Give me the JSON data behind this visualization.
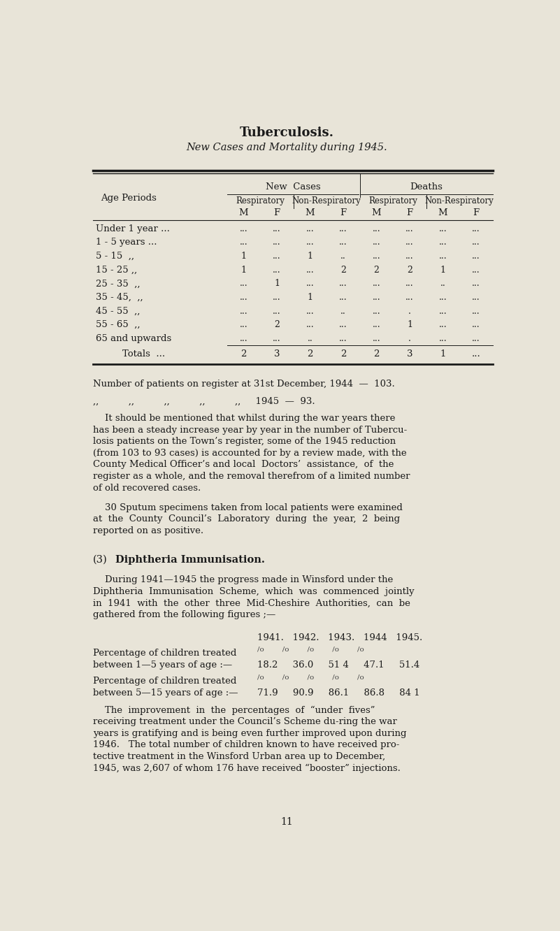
{
  "bg_color": "#e8e4d8",
  "text_color": "#1a1a1a",
  "page_width": 8.01,
  "page_height": 13.32,
  "title": "Tuberculosis.",
  "subtitle": "New Cases and Mortality during 1945.",
  "table_rows": [
    [
      "Under 1 year ...",
      "...",
      "...",
      "...",
      "...",
      "...",
      "...",
      "...",
      "..."
    ],
    [
      "1 - 5 years ...",
      "...",
      "...",
      "...",
      "...",
      "...",
      "...",
      "...",
      "..."
    ],
    [
      "5 - 15  ,,",
      "1",
      "...",
      "1",
      "..",
      "...",
      "...",
      "...",
      "..."
    ],
    [
      "15 - 25 ,,",
      "1",
      "...",
      "...",
      "2",
      "2",
      "2",
      "1",
      "..."
    ],
    [
      "25 - 35  ,,",
      "...",
      "1",
      "...",
      "...",
      "...",
      "...",
      "..",
      "..."
    ],
    [
      "35 - 45,  ,,",
      "...",
      "...",
      "1",
      "...",
      "...",
      "...",
      "...",
      "..."
    ],
    [
      "45 - 55  ,,",
      "...",
      "...",
      "...",
      "..",
      "...",
      ".",
      "...",
      "..."
    ],
    [
      "55 - 65  ,,",
      "...",
      "2",
      "...",
      "...",
      "...",
      "1",
      "...",
      "..."
    ],
    [
      "65 and upwards",
      "...",
      "...",
      "..",
      "...",
      "...",
      ".",
      "...",
      "..."
    ]
  ],
  "table_totals": [
    "Totals  ...",
    "2",
    "3",
    "2",
    "2",
    "2",
    "3",
    "1",
    "..."
  ],
  "register_line1": "Number of patients on register at 31st December, 1944  —  103.",
  "register_line2": ",,          ,,          ,,          ,,          ,,     1945  —  93.",
  "para1_lines": [
    "    It should be mentioned that whilst during the war years there",
    "has been a steady increase year by year in the number of Tubercu-",
    "losis patients on the Town’s register, some of the 1945 reduction",
    "(from 103 to 93 cases) is accounted for by a review made, with the",
    "County Medical Officer’s and local  Doctors’  assistance,  of  the",
    "register as a whole, and the removal therefrom of a limited number",
    "of old recovered cases."
  ],
  "para2_lines": [
    "    30 Sputum specimens taken from local patients were examined",
    "at  the  County  Council’s  Laboratory  during  the  year,  2  being",
    "reported on as positive."
  ],
  "section_header_num": "(3)",
  "section_header_txt": "Diphtheria Immunisation.",
  "para3_lines": [
    "    During 1941—1945 the progress made in Winsford under the",
    "Diphtheria  Immunisation  Scheme,  which  was  commenced  jointly",
    "in  1941  with  the  other  three  Mid-Cheshire  Authorities,  can  be",
    "gathered from the following figures ;—"
  ],
  "years_header": "1941.   1942.   1943.   1944   1945.",
  "row1a": "Percentage of children treated",
  "row1b": "between 1—5 years of age :—",
  "row1_pct": "/o        /o        /o        /o        /o",
  "row1_vals": "18.2     36.0     51 4     47.1     51.4",
  "row2a": "Percentage of children treated",
  "row2b": "between 5—15 years of age :—",
  "row2_pct": "/o        /o        /o        /o        /o",
  "row2_vals": "71.9     90.9     86.1     86.8     84 1",
  "para4_lines": [
    "    The  improvement  in  the  percentages  of  “under  fives”",
    "receiving treatment under the Council’s Scheme du­ring the war",
    "years is gratifying and is being even further improved upon during",
    "1946.   The total number of children known to have received pro-",
    "tective treatment in the Winsford Urban area up to December,",
    "1945, was 2,607 of whom 176 have received “booster” injections."
  ],
  "page_number": "11"
}
